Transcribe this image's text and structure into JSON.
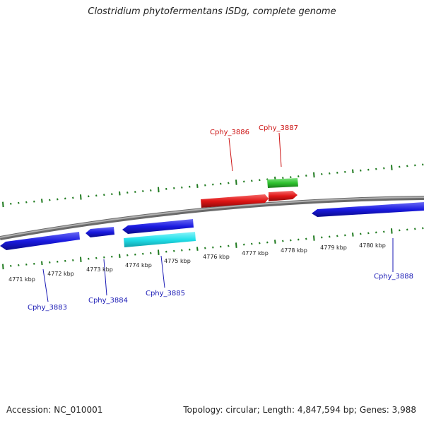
{
  "title": "Clostridium phytofermentans ISDg, complete genome",
  "footer": {
    "accession": "Accession: NC_010001",
    "summary": "Topology: circular; Length: 4,847,594 bp; Genes: 3,988"
  },
  "colors": {
    "backbone": "#8a8a8a",
    "tick": "#1f7a1f",
    "strand_minus": "#1a1ae0",
    "strand_plus": "#e01515",
    "rna": "#2ec22e",
    "highlight": "#22e0ea",
    "label_minus": "#1a1ab5",
    "label_plus": "#cc1111"
  },
  "scale_labels": [
    "4771 kbp",
    "4772 kbp",
    "4773 kbp",
    "4774 kbp",
    "4775 kbp",
    "4776 kbp",
    "4777 kbp",
    "4778 kbp",
    "4779 kbp",
    "4780 kbp"
  ],
  "gene_labels": {
    "cphy_3883": "Cphy_3883",
    "cphy_3884": "Cphy_3884",
    "cphy_3885": "Cphy_3885",
    "cphy_3886": "Cphy_3886",
    "cphy_3887": "Cphy_3887",
    "cphy_3888": "Cphy_3888"
  }
}
